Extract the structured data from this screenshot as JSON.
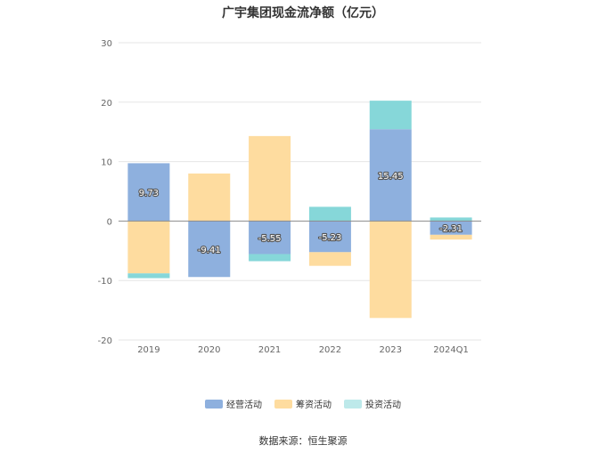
{
  "chart_data": {
    "type": "bar",
    "stacked": true,
    "title": "广宇集团现金流净额（亿元）",
    "categories": [
      "2019",
      "2020",
      "2021",
      "2022",
      "2023",
      "2024Q1"
    ],
    "series": [
      {
        "name": "经营活动",
        "color": "#8eb0de",
        "values": [
          9.73,
          -9.41,
          -5.55,
          -5.23,
          15.45,
          -2.31
        ]
      },
      {
        "name": "筹资活动",
        "color": "#fedc9f",
        "values": [
          -8.8,
          8.0,
          14.3,
          -2.3,
          -16.3,
          -0.8
        ]
      },
      {
        "name": "投资活动",
        "color": "#86d7d9",
        "values": [
          -0.8,
          0.0,
          -1.2,
          2.4,
          4.8,
          0.6
        ]
      }
    ],
    "data_labels": [
      "9.73",
      "-9.41",
      "-5.55",
      "-5.23",
      "15.45",
      "-2.31"
    ],
    "y_ticks": [
      30,
      20,
      10,
      0,
      -10,
      -20
    ],
    "ylim": [
      -20,
      30
    ],
    "grid": true,
    "legend_position": "bottom",
    "source": "数据来源：恒生聚源"
  }
}
